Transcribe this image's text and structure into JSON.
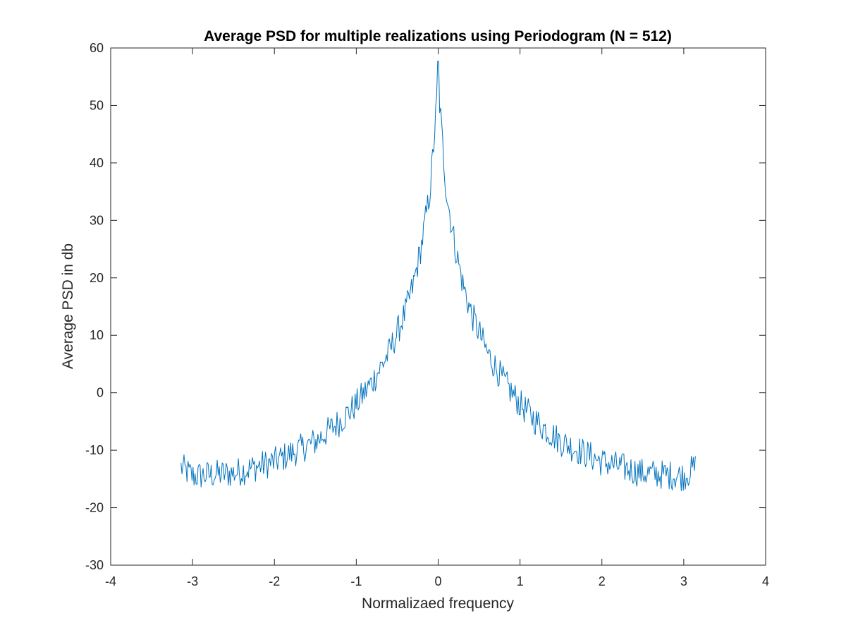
{
  "chart_data": {
    "type": "line",
    "title": "Average PSD for multiple realizations using Periodogram (N = 512)",
    "xlabel": "Normalizaed frequency",
    "ylabel": "Average PSD in db",
    "xlim": [
      -4,
      4
    ],
    "ylim": [
      -30,
      60
    ],
    "xticks": [
      -4,
      -3,
      -2,
      -1,
      0,
      1,
      2,
      3,
      4
    ],
    "yticks": [
      -30,
      -20,
      -10,
      0,
      10,
      20,
      30,
      40,
      50,
      60
    ],
    "grid": false,
    "legend": "none",
    "series": [
      {
        "color": "#0072bd",
        "x_range": [
          -3.1416,
          3.1416
        ],
        "num_points": 512,
        "envelope": {
          "x": [
            -3.14,
            -3.0,
            -2.5,
            -2.0,
            -1.5,
            -1.2,
            -1.0,
            -0.8,
            -0.6,
            -0.4,
            -0.3,
            -0.2,
            -0.1,
            -0.05,
            0.0,
            0.05,
            0.1,
            0.2,
            0.3,
            0.4,
            0.6,
            0.8,
            1.0,
            1.2,
            1.5,
            2.0,
            2.5,
            3.0,
            3.14
          ],
          "y": [
            -13.0,
            -14.5,
            -14.0,
            -12.0,
            -8.5,
            -5.0,
            -2.0,
            2.0,
            7.0,
            14.0,
            19.0,
            26.0,
            35.0,
            44.0,
            54.0,
            44.0,
            35.0,
            26.0,
            19.0,
            14.0,
            7.0,
            2.0,
            -2.0,
            -5.0,
            -8.5,
            -12.0,
            -14.0,
            -14.5,
            -13.0
          ]
        },
        "noise_amplitude_db": 2.6,
        "peak_db": 57.7
      }
    ]
  }
}
